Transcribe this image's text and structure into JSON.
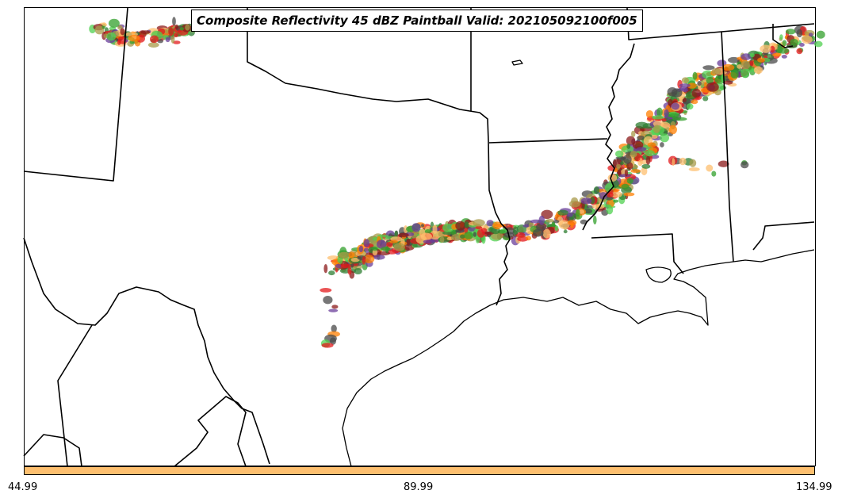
{
  "title": "Composite Reflectivity 45 dBZ Paintball Valid: 202105092100f005",
  "colorbar": {
    "color": "#fdbf6f",
    "ticks": [
      "44.99",
      "89.99",
      "134.99"
    ]
  },
  "colors": {
    "paintball": [
      "#e31a1c",
      "#ff7f00",
      "#fdbf6f",
      "#33a02c",
      "#6a3d9a",
      "#8b1a1a",
      "#a89a4a",
      "#4a4a4a",
      "#50d050",
      "#2e7d32"
    ],
    "boundaries": "#000000"
  }
}
